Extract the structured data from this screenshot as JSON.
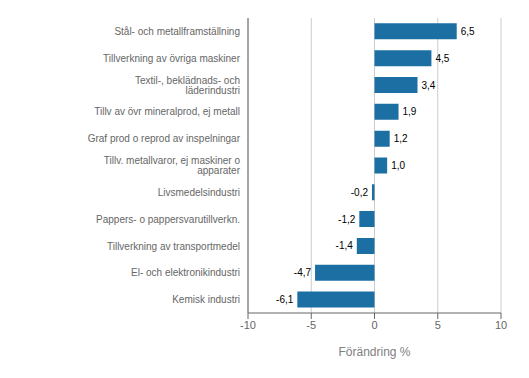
{
  "chart_data": {
    "type": "bar",
    "orientation": "horizontal",
    "categories": [
      "Kemisk industri",
      "El- och elektronikindustri",
      "Tillverkning av transportmedel",
      "Pappers- o pappersvarutillverkn.",
      "Livsmedelsindustri",
      "Tillv. metallvaror, ej maskiner o apparater",
      "Graf prod o reprod av inspelningar",
      "Tillv av övr mineralprod, ej metall",
      "Textil-, beklädnads- och läderindustri",
      "Tillverkning av övriga maskiner",
      "Stål- och metallframställning"
    ],
    "values": [
      -6.1,
      -4.7,
      -1.4,
      -1.2,
      -0.2,
      1.0,
      1.2,
      1.9,
      3.4,
      4.5,
      6.5
    ],
    "value_labels": [
      "-6,1",
      "-4,7",
      "-1,4",
      "-1,2",
      "-0,2",
      "1,0",
      "1,2",
      "1,9",
      "3,4",
      "4,5",
      "6,5"
    ],
    "data_labels": true,
    "color": "#1c6fa3",
    "xlabel": "Förändring %",
    "xlim": [
      -10,
      10
    ],
    "xticks": [
      -10,
      -5,
      0,
      5,
      10
    ],
    "grid": true
  }
}
